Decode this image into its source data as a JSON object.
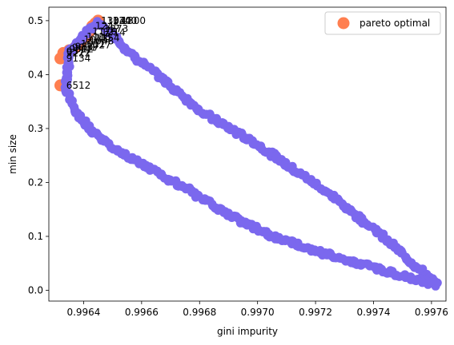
{
  "chart_data": {
    "type": "scatter",
    "xlabel": "gini impurity",
    "ylabel": "min size",
    "xlim": [
      0.99628,
      0.99765
    ],
    "ylim": [
      -0.02,
      0.525
    ],
    "x_ticks": [
      "0.9964",
      "0.9966",
      "0.9968",
      "0.9970",
      "0.9972",
      "0.9974",
      "0.9976"
    ],
    "x_tick_values": [
      0.9964,
      0.9966,
      0.9968,
      0.997,
      0.9972,
      0.9974,
      0.9976
    ],
    "y_ticks": [
      "0.0",
      "0.1",
      "0.2",
      "0.3",
      "0.4",
      "0.5"
    ],
    "y_tick_values": [
      0.0,
      0.1,
      0.2,
      0.3,
      0.4,
      0.5
    ],
    "legend": {
      "entries": [
        {
          "label": "pareto optimal",
          "color": "#ff7f50"
        }
      ],
      "position": "upper right"
    },
    "colors": {
      "all_points": "#7b68ee",
      "pareto": "#ff7f50"
    },
    "loop_vertices": [
      [
        0.99634,
        0.375
      ],
      [
        0.99635,
        0.44
      ],
      [
        0.99638,
        0.46
      ],
      [
        0.99642,
        0.485
      ],
      [
        0.99645,
        0.495
      ],
      [
        0.99651,
        0.47
      ],
      [
        0.99656,
        0.44
      ],
      [
        0.99663,
        0.41
      ],
      [
        0.99681,
        0.33
      ],
      [
        0.997,
        0.27
      ],
      [
        0.99722,
        0.19
      ],
      [
        0.99741,
        0.11
      ],
      [
        0.99762,
        0.01
      ],
      [
        0.99748,
        0.03
      ],
      [
        0.99728,
        0.06
      ],
      [
        0.99705,
        0.1
      ],
      [
        0.9969,
        0.14
      ],
      [
        0.99675,
        0.19
      ],
      [
        0.99658,
        0.24
      ],
      [
        0.99646,
        0.28
      ],
      [
        0.99637,
        0.33
      ],
      [
        0.99635,
        0.36
      ],
      [
        0.99634,
        0.375
      ]
    ],
    "pareto_points": [
      [
        0.99632,
        0.38
      ],
      [
        0.99632,
        0.43
      ],
      [
        0.99633,
        0.44
      ],
      [
        0.99635,
        0.445
      ],
      [
        0.99637,
        0.45
      ],
      [
        0.99638,
        0.455
      ],
      [
        0.99639,
        0.46
      ],
      [
        0.99641,
        0.47
      ],
      [
        0.99642,
        0.48
      ],
      [
        0.99643,
        0.49
      ],
      [
        0.99644,
        0.495
      ],
      [
        0.99645,
        0.5
      ]
    ],
    "annotations": [
      {
        "text": "6512",
        "x": 0.99634,
        "y": 0.38
      },
      {
        "text": "9134",
        "x": 0.99634,
        "y": 0.43
      },
      {
        "text": "1304",
        "x": 0.99646,
        "y": 0.5
      },
      {
        "text": "1320",
        "x": 0.99648,
        "y": 0.5
      },
      {
        "text": "1340",
        "x": 0.9965,
        "y": 0.5
      },
      {
        "text": "1300",
        "x": 0.99653,
        "y": 0.5
      },
      {
        "text": "1245",
        "x": 0.99644,
        "y": 0.49
      },
      {
        "text": "1273",
        "x": 0.99647,
        "y": 0.485
      },
      {
        "text": "1176",
        "x": 0.99643,
        "y": 0.48
      },
      {
        "text": "1214",
        "x": 0.99646,
        "y": 0.478
      },
      {
        "text": "1118",
        "x": 0.99641,
        "y": 0.47
      },
      {
        "text": "1154",
        "x": 0.99644,
        "y": 0.468
      },
      {
        "text": "1075",
        "x": 0.9964,
        "y": 0.465
      },
      {
        "text": "1048",
        "x": 0.99642,
        "y": 0.462
      },
      {
        "text": "1011",
        "x": 0.99639,
        "y": 0.457
      },
      {
        "text": "1027",
        "x": 0.99641,
        "y": 0.455
      },
      {
        "text": "9817",
        "x": 0.99637,
        "y": 0.452
      },
      {
        "text": "9651",
        "x": 0.99636,
        "y": 0.45
      },
      {
        "text": "9512",
        "x": 0.99635,
        "y": 0.447
      },
      {
        "text": "9377",
        "x": 0.99634,
        "y": 0.443
      },
      {
        "text": "9222",
        "x": 0.99634,
        "y": 0.44
      }
    ]
  }
}
